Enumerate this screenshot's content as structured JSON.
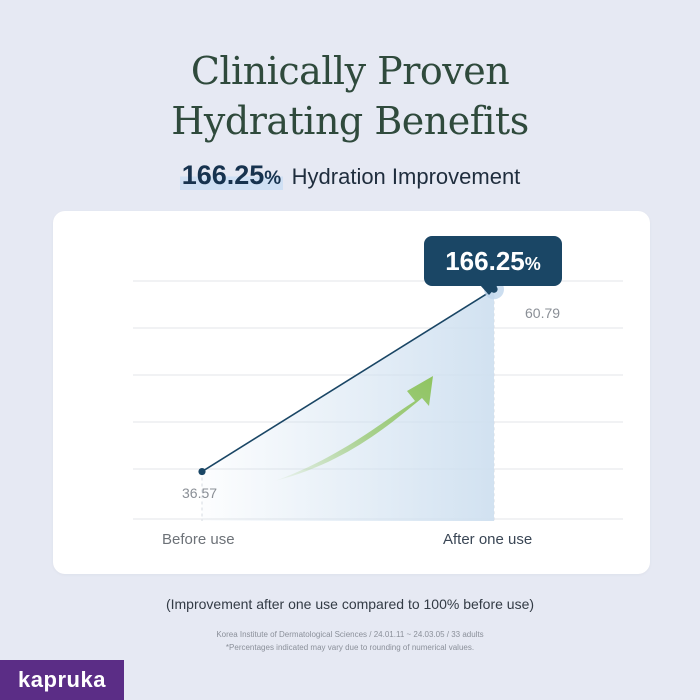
{
  "title": {
    "line1": "Clinically Proven",
    "line2": "Hydrating Benefits"
  },
  "subtitle": {
    "value": "166.25",
    "unit": "%",
    "label": "Hydration Improvement"
  },
  "chart_data": {
    "type": "line",
    "categories": [
      "Before use",
      "After one use"
    ],
    "series": [
      {
        "values": [
          36.57,
          60.79
        ]
      }
    ],
    "point_labels": [
      "36.57",
      "60.79"
    ],
    "callout": {
      "value": "166.25",
      "unit": "%"
    },
    "ylim": [
      30,
      68
    ],
    "grid": true,
    "colors": {
      "line": "#1a4665",
      "area": "#cfe0f0",
      "arrow": "#8fc460",
      "callout": "#1a4665"
    }
  },
  "note": "(Improvement after one use compared to 100% before use)",
  "source": {
    "line1": "Korea Institute of Dermatological Sciences / 24.01.11 ~ 24.03.05 / 33 adults",
    "line2": "*Percentages indicated may vary due to rounding of numerical values."
  },
  "brand": "kapruka"
}
